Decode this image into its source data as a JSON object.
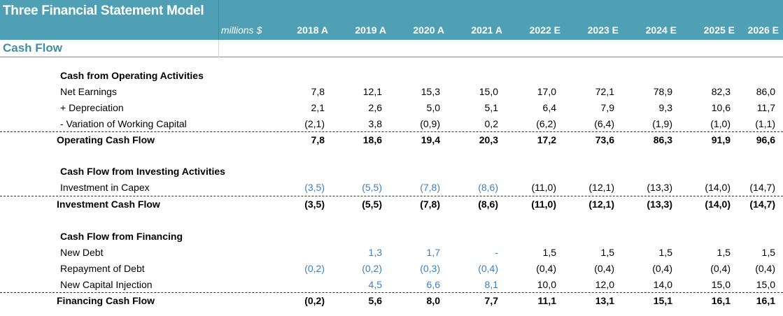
{
  "header": {
    "title": "Three Financial Statement Model",
    "units": "millions $",
    "years": [
      "2018 A",
      "2019 A",
      "2020 A",
      "2021 A",
      "2022 E",
      "2023 E",
      "2024 E",
      "2025 E",
      "2026 E"
    ]
  },
  "section": {
    "label": "Cash Flow"
  },
  "colors": {
    "header_bg": "#4fa0b4",
    "section_text": "#3d8fa3",
    "input_blue": "#3a7fc1"
  },
  "operating": {
    "heading": "Cash from Operating Activities",
    "net_earnings": {
      "label": "Net Earnings",
      "values": [
        "7,8",
        "12,1",
        "15,3",
        "15,0",
        "17,0",
        "72,1",
        "78,9",
        "82,3",
        "86,0"
      ]
    },
    "depreciation": {
      "label": "+ Depreciation",
      "values": [
        "2,1",
        "2,6",
        "5,0",
        "5,1",
        "6,4",
        "7,9",
        "9,3",
        "10,6",
        "11,7"
      ]
    },
    "working_capital": {
      "label": "- Variation of Working Capital",
      "values": [
        "(2,1)",
        "3,8",
        "(0,9)",
        "0,2",
        "(6,2)",
        "(6,4)",
        "(1,9)",
        "(1,0)",
        "(1,1)"
      ]
    },
    "total": {
      "label": "Operating Cash Flow",
      "values": [
        "7,8",
        "18,6",
        "19,4",
        "20,3",
        "17,2",
        "73,6",
        "86,3",
        "91,9",
        "96,6"
      ]
    }
  },
  "investing": {
    "heading": "Cash Flow from Investing Activities",
    "capex": {
      "label": "Investment in Capex",
      "values": [
        "(3,5)",
        "(5,5)",
        "(7,8)",
        "(8,6)",
        "(11,0)",
        "(12,1)",
        "(13,3)",
        "(14,0)",
        "(14,7)"
      ]
    },
    "total": {
      "label": "Investment Cash Flow",
      "values": [
        "(3,5)",
        "(5,5)",
        "(7,8)",
        "(8,6)",
        "(11,0)",
        "(12,1)",
        "(13,3)",
        "(14,0)",
        "(14,7)"
      ]
    }
  },
  "financing": {
    "heading": "Cash Flow from Financing",
    "new_debt": {
      "label": "New Debt",
      "values": [
        "",
        "1,3",
        "1,7",
        "-",
        "1,5",
        "1,5",
        "1,5",
        "1,5",
        "1,5"
      ]
    },
    "repayment": {
      "label": "Repayment of Debt",
      "values": [
        "(0,2)",
        "(0,2)",
        "(0,3)",
        "(0,4)",
        "(0,4)",
        "(0,4)",
        "(0,4)",
        "(0,4)",
        "(0,4)"
      ]
    },
    "capital_injection": {
      "label": "New Capital Injection",
      "values": [
        "",
        "4,5",
        "6,6",
        "8,1",
        "10,0",
        "12,0",
        "14,0",
        "15,0",
        "15,0"
      ]
    },
    "total": {
      "label": "Financing Cash Flow",
      "values": [
        "(0,2)",
        "5,6",
        "8,0",
        "7,7",
        "11,1",
        "13,1",
        "15,1",
        "16,1",
        "16,1"
      ]
    }
  }
}
